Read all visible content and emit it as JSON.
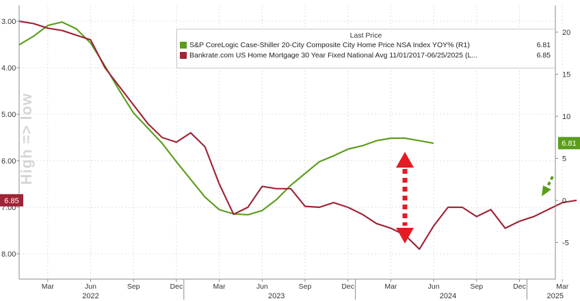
{
  "chart_data": {
    "type": "line",
    "ylabel": "High => low",
    "legend": {
      "header": "Last Price",
      "placement": "top-right",
      "entries": [
        {
          "label": "S&P CoreLogic Case-Shiller 20-City Composite City Home Price NSA Index YOY%  (R1)",
          "value": "6.81",
          "color": "#5a9e1c"
        },
        {
          "label": "Bankrate.com US Home Mortgage 30 Year Fixed National Avg 11/01/2017-06/25/2025   (L...",
          "value": "6.85",
          "color": "#9e2436"
        }
      ]
    },
    "left_axis": {
      "ticks": [
        "3.00",
        "4.00",
        "5.00",
        "6.00",
        "7.00",
        "8.00"
      ],
      "inverted": true
    },
    "right_axis": {
      "ticks": [
        "20",
        "15",
        "10",
        "5",
        "0",
        "-5"
      ]
    },
    "x_months": [
      "Mar",
      "Jun",
      "Sep",
      "Dec",
      "Mar",
      "Jun",
      "Sep",
      "Dec",
      "Mar",
      "Jun",
      "Sep",
      "Dec",
      "Mar"
    ],
    "x_years": [
      "2022",
      "2023",
      "2024",
      "2025"
    ],
    "badges": {
      "left": "6.85",
      "right": "6.81"
    },
    "series": [
      {
        "name": "Case-Shiller 20-City YoY%",
        "axis": "right",
        "points": [
          [
            "2022-01",
            18.5
          ],
          [
            "2022-02",
            19.5
          ],
          [
            "2022-03",
            20.8
          ],
          [
            "2022-04",
            21.2
          ],
          [
            "2022-05",
            20.4
          ],
          [
            "2022-06",
            18.7
          ],
          [
            "2022-07",
            16.0
          ],
          [
            "2022-08",
            13.1
          ],
          [
            "2022-09",
            10.4
          ],
          [
            "2022-10",
            8.6
          ],
          [
            "2022-11",
            6.8
          ],
          [
            "2022-12",
            4.6
          ],
          [
            "2023-01",
            2.5
          ],
          [
            "2023-02",
            0.4
          ],
          [
            "2023-03",
            -1.1
          ],
          [
            "2023-04",
            -1.6
          ],
          [
            "2023-05",
            -1.7
          ],
          [
            "2023-06",
            -1.2
          ],
          [
            "2023-07",
            0.1
          ],
          [
            "2023-08",
            1.8
          ],
          [
            "2023-09",
            3.2
          ],
          [
            "2023-10",
            4.6
          ],
          [
            "2023-11",
            5.3
          ],
          [
            "2023-12",
            6.1
          ],
          [
            "2024-01",
            6.5
          ],
          [
            "2024-02",
            7.1
          ],
          [
            "2024-03",
            7.4
          ],
          [
            "2024-04",
            7.4
          ],
          [
            "2024-05",
            7.1
          ],
          [
            "2024-06",
            6.8
          ]
        ]
      },
      {
        "name": "30Y Fixed Mortgage Rate",
        "axis": "left",
        "points": [
          [
            "2022-01",
            3.0
          ],
          [
            "2022-02",
            3.05
          ],
          [
            "2022-03",
            3.15
          ],
          [
            "2022-04",
            3.2
          ],
          [
            "2022-05",
            3.3
          ],
          [
            "2022-06",
            3.4
          ],
          [
            "2022-07",
            4.0
          ],
          [
            "2022-08",
            4.4
          ],
          [
            "2022-09",
            4.8
          ],
          [
            "2022-10",
            5.2
          ],
          [
            "2022-11",
            5.5
          ],
          [
            "2022-12",
            5.6
          ],
          [
            "2023-01",
            5.4
          ],
          [
            "2023-02",
            5.7
          ],
          [
            "2023-03",
            6.5
          ],
          [
            "2023-04",
            7.15
          ],
          [
            "2023-05",
            7.0
          ],
          [
            "2023-06",
            6.55
          ],
          [
            "2023-07",
            6.6
          ],
          [
            "2023-08",
            6.6
          ],
          [
            "2023-09",
            6.98
          ],
          [
            "2023-10",
            7.0
          ],
          [
            "2023-11",
            6.9
          ],
          [
            "2023-12",
            7.0
          ],
          [
            "2024-01",
            7.15
          ],
          [
            "2024-02",
            7.35
          ],
          [
            "2024-03",
            7.45
          ],
          [
            "2024-04",
            7.6
          ],
          [
            "2024-05",
            7.9
          ],
          [
            "2024-06",
            7.4
          ],
          [
            "2024-07",
            7.0
          ],
          [
            "2024-08",
            7.0
          ],
          [
            "2024-09",
            7.2
          ],
          [
            "2024-10",
            7.05
          ],
          [
            "2024-11",
            7.45
          ],
          [
            "2024-12",
            7.3
          ],
          [
            "2025-01",
            7.2
          ],
          [
            "2025-02",
            7.05
          ],
          [
            "2025-03",
            6.9
          ],
          [
            "2025-04",
            6.85
          ]
        ]
      }
    ]
  }
}
